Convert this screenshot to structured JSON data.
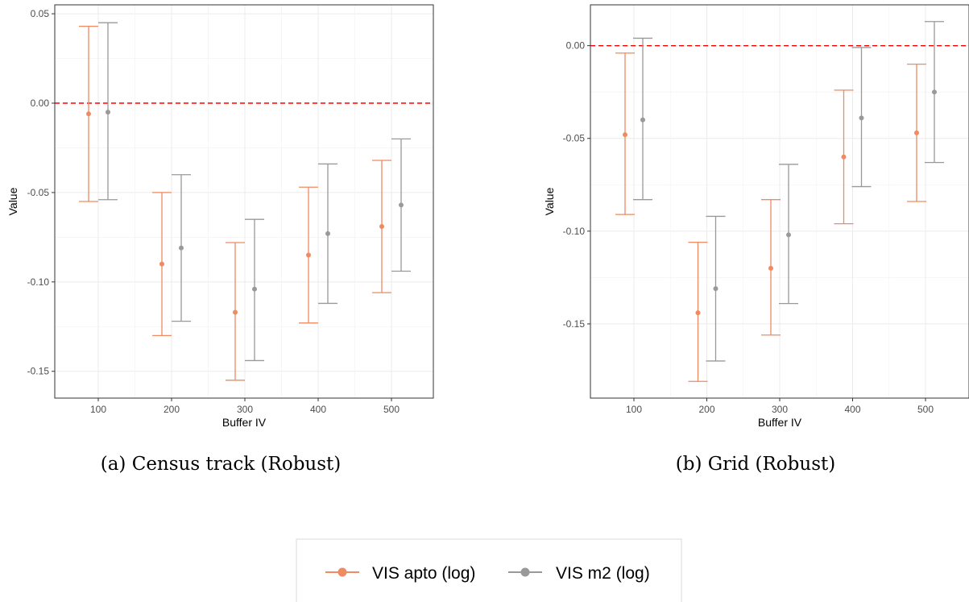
{
  "colors": {
    "series1": "#ef8a62",
    "series2": "#999999",
    "zero_line": "#ff0000"
  },
  "legend": {
    "items": [
      "VIS apto (log)",
      "VIS m2 (log)"
    ]
  },
  "chart_data": [
    {
      "type": "errorbar",
      "caption": "(a) Census track (Robust)",
      "xlabel": "Buffer IV",
      "ylabel": "Value",
      "categories": [
        "100",
        "200",
        "300",
        "400",
        "500"
      ],
      "ylim": [
        -0.165,
        0.055
      ],
      "yticks": [
        "0.05",
        "0.00",
        "-0.05",
        "-0.10",
        "-0.15"
      ],
      "ytick_values": [
        0.05,
        0.0,
        -0.05,
        -0.1,
        -0.15
      ],
      "reference_line": 0.0,
      "grid": true,
      "series": [
        {
          "name": "VIS apto (log)",
          "values": [
            -0.006,
            -0.09,
            -0.117,
            -0.085,
            -0.069
          ],
          "lower": [
            -0.055,
            -0.13,
            -0.155,
            -0.123,
            -0.106
          ],
          "upper": [
            0.043,
            -0.05,
            -0.078,
            -0.047,
            -0.032
          ]
        },
        {
          "name": "VIS m2 (log)",
          "values": [
            -0.005,
            -0.081,
            -0.104,
            -0.073,
            -0.057
          ],
          "lower": [
            -0.054,
            -0.122,
            -0.144,
            -0.112,
            -0.094
          ],
          "upper": [
            0.045,
            -0.04,
            -0.065,
            -0.034,
            -0.02
          ]
        }
      ]
    },
    {
      "type": "errorbar",
      "caption": "(b) Grid (Robust)",
      "xlabel": "Buffer IV",
      "ylabel": "Value",
      "categories": [
        "100",
        "200",
        "300",
        "400",
        "500"
      ],
      "ylim": [
        -0.19,
        0.022
      ],
      "yticks": [
        "0.00",
        "-0.05",
        "-0.10",
        "-0.15"
      ],
      "ytick_values": [
        0.0,
        -0.05,
        -0.1,
        -0.15
      ],
      "reference_line": 0.0,
      "grid": true,
      "series": [
        {
          "name": "VIS apto (log)",
          "values": [
            -0.048,
            -0.144,
            -0.12,
            -0.06,
            -0.047
          ],
          "lower": [
            -0.091,
            -0.181,
            -0.156,
            -0.096,
            -0.084
          ],
          "upper": [
            -0.004,
            -0.106,
            -0.083,
            -0.024,
            -0.01
          ]
        },
        {
          "name": "VIS m2 (log)",
          "values": [
            -0.04,
            -0.131,
            -0.102,
            -0.039,
            -0.025
          ],
          "lower": [
            -0.083,
            -0.17,
            -0.139,
            -0.076,
            -0.063
          ],
          "upper": [
            0.004,
            -0.092,
            -0.064,
            -0.001,
            0.013
          ]
        }
      ]
    }
  ]
}
